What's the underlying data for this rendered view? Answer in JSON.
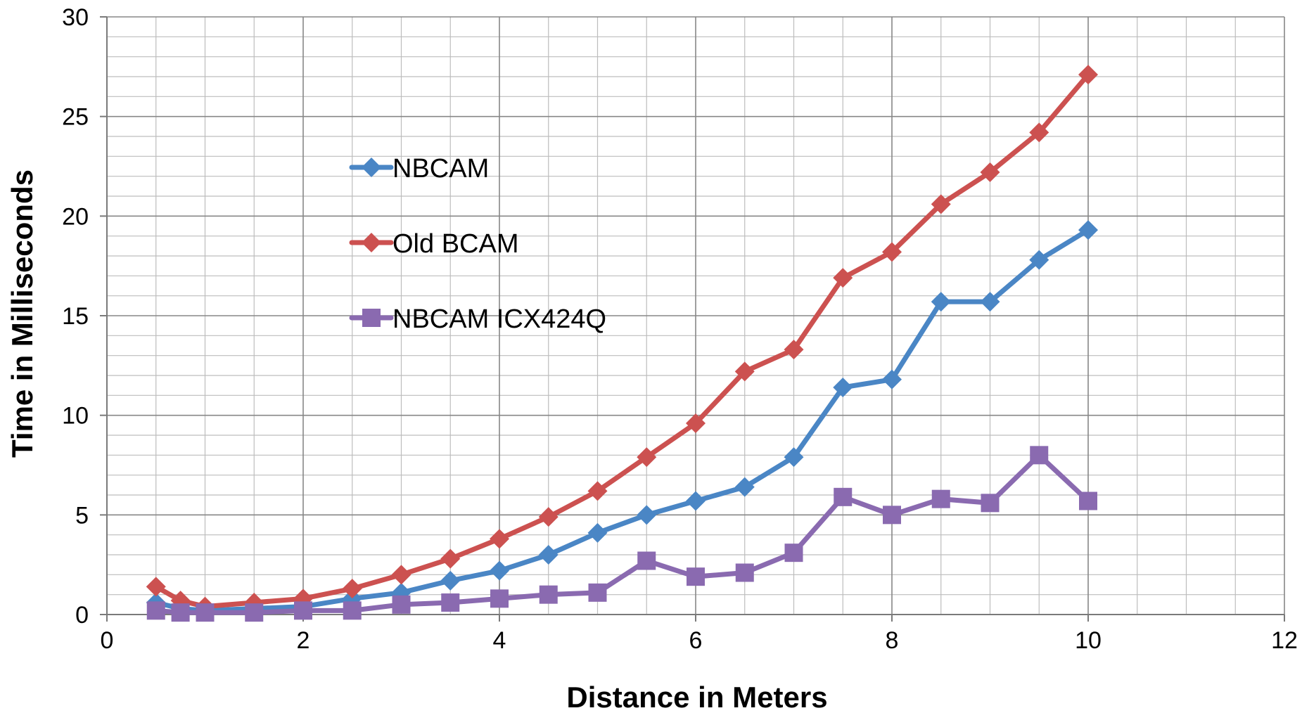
{
  "chart_data": {
    "type": "line",
    "title": "",
    "xlabel": "Distance in Meters",
    "ylabel": "Time in Milliseconds",
    "xlim": [
      0,
      12
    ],
    "ylim": [
      0,
      30
    ],
    "x_ticks": [
      0,
      2,
      4,
      6,
      8,
      10,
      12
    ],
    "y_ticks": [
      0,
      5,
      10,
      15,
      20,
      25,
      30
    ],
    "x_minor_step": 0.5,
    "y_minor_step": 1,
    "grid": true,
    "legend_position": "inside-upper-left",
    "series": [
      {
        "name": "NBCAM",
        "color": "#4a86c5",
        "marker": "diamond",
        "x": [
          0.5,
          0.75,
          1,
          1.5,
          2,
          2.5,
          3,
          3.5,
          4,
          4.5,
          5,
          5.5,
          6,
          6.5,
          7,
          7.5,
          8,
          8.5,
          9,
          9.5,
          10
        ],
        "y": [
          0.6,
          0.3,
          0.2,
          0.3,
          0.4,
          0.8,
          1.1,
          1.7,
          2.2,
          3.0,
          4.1,
          5.0,
          5.7,
          6.4,
          7.9,
          11.4,
          11.8,
          15.7,
          15.7,
          17.8,
          19.3
        ]
      },
      {
        "name": "Old BCAM",
        "color": "#cc5150",
        "marker": "diamond",
        "x": [
          0.5,
          0.75,
          1,
          1.5,
          2,
          2.5,
          3,
          3.5,
          4,
          4.5,
          5,
          5.5,
          6,
          6.5,
          7,
          7.5,
          8,
          8.5,
          9,
          9.5,
          10
        ],
        "y": [
          1.4,
          0.7,
          0.4,
          0.6,
          0.8,
          1.3,
          2.0,
          2.8,
          3.8,
          4.9,
          6.2,
          7.9,
          9.6,
          12.2,
          13.3,
          16.9,
          18.2,
          20.6,
          22.2,
          24.2,
          27.1
        ]
      },
      {
        "name": "NBCAM ICX424Q",
        "color": "#8a6ab0",
        "marker": "square",
        "x": [
          0.5,
          0.75,
          1,
          1.5,
          2,
          2.5,
          3,
          3.5,
          4,
          4.5,
          5,
          5.5,
          6,
          6.5,
          7,
          7.5,
          8,
          8.5,
          9,
          9.5,
          10
        ],
        "y": [
          0.2,
          0.1,
          0.1,
          0.1,
          0.2,
          0.2,
          0.5,
          0.6,
          0.8,
          1.0,
          1.1,
          2.7,
          1.9,
          2.1,
          3.1,
          5.9,
          5.0,
          5.8,
          5.6,
          8.0,
          5.7
        ]
      }
    ]
  }
}
